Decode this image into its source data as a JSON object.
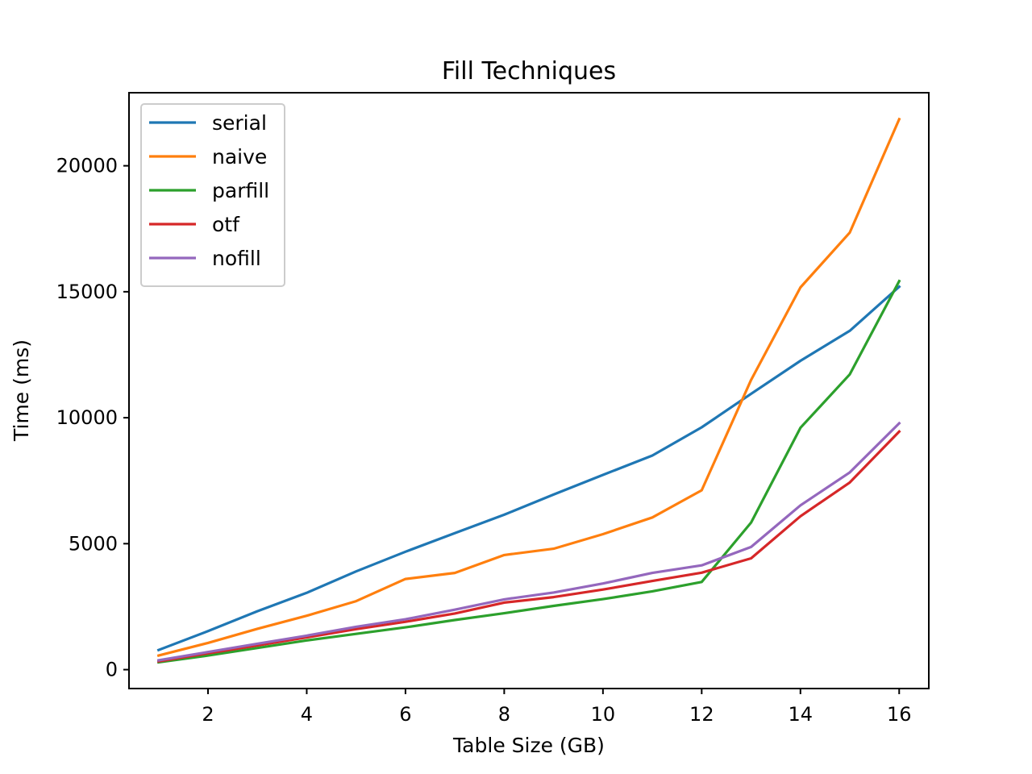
{
  "chart_data": {
    "type": "line",
    "title": "Fill Techniques",
    "xlabel": "Table Size (GB)",
    "ylabel": "Time (ms)",
    "xlim": [
      0.4,
      16.6
    ],
    "ylim": [
      -750,
      22900
    ],
    "xticks": [
      2,
      4,
      6,
      8,
      10,
      12,
      14,
      16
    ],
    "yticks": [
      0,
      5000,
      10000,
      15000,
      20000
    ],
    "grid": false,
    "legend_position": "upper-left",
    "x": [
      1,
      2,
      3,
      4,
      5,
      6,
      7,
      8,
      9,
      10,
      11,
      12,
      13,
      14,
      15,
      16
    ],
    "series": [
      {
        "name": "serial",
        "color": "#1f77b4",
        "values": [
          780,
          1530,
          2320,
          3050,
          3900,
          4680,
          5420,
          6150,
          6950,
          7730,
          8500,
          9620,
          10950,
          12260,
          13450,
          15200
        ]
      },
      {
        "name": "naive",
        "color": "#ff7f0e",
        "values": [
          560,
          1060,
          1620,
          2140,
          2720,
          3600,
          3840,
          4550,
          4800,
          5380,
          6040,
          7120,
          11500,
          15170,
          17350,
          21850
        ]
      },
      {
        "name": "parfill",
        "color": "#2ca02c",
        "values": [
          290,
          560,
          860,
          1160,
          1420,
          1680,
          1970,
          2240,
          2530,
          2800,
          3110,
          3480,
          5840,
          9600,
          11720,
          15420
        ]
      },
      {
        "name": "otf",
        "color": "#d62728",
        "values": [
          330,
          650,
          960,
          1280,
          1610,
          1900,
          2230,
          2660,
          2880,
          3180,
          3520,
          3850,
          4420,
          6090,
          7430,
          9450
        ]
      },
      {
        "name": "nofill",
        "color": "#9467bd",
        "values": [
          370,
          700,
          1030,
          1350,
          1700,
          2000,
          2380,
          2790,
          3060,
          3420,
          3840,
          4140,
          4870,
          6520,
          7830,
          9780
        ]
      }
    ]
  }
}
